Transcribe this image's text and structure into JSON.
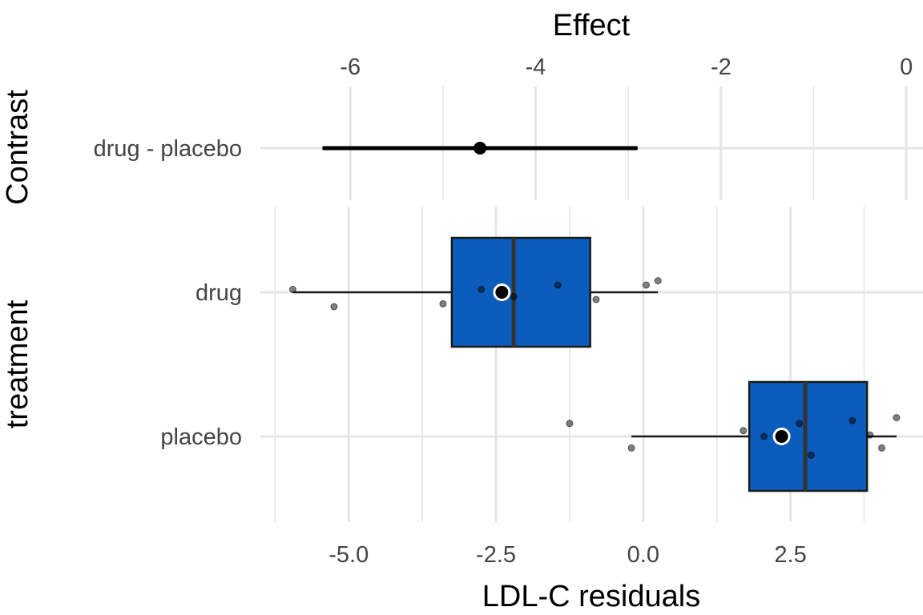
{
  "chart_data": [
    {
      "type": "errorbar",
      "xlabel": "Effect",
      "ylabel": "Contrast",
      "x_axis_position": "top",
      "xlim": [
        -6.97,
        0.18
      ],
      "x_ticks": [
        -6,
        -4,
        -2,
        0
      ],
      "grid": true,
      "contrasts": [
        {
          "label": "drug - placebo",
          "estimate": -4.6,
          "lower": -6.3,
          "upper": -2.9
        }
      ]
    },
    {
      "type": "boxplot",
      "xlabel": "LDL-C residuals",
      "ylabel": "treatment",
      "xlim": [
        -6.5,
        4.75
      ],
      "x_ticks": [
        -5.0,
        -2.5,
        0.0,
        2.5
      ],
      "x_tick_labels": [
        "-5.0",
        "-2.5",
        "0.0",
        "2.5"
      ],
      "grid": true,
      "box_color": "#0b5cbb",
      "groups": [
        {
          "name": "drug",
          "q1": -3.25,
          "median": -2.2,
          "q3": -0.9,
          "whisker_low": -5.95,
          "whisker_high": 0.25,
          "mean": -2.4,
          "points": [
            {
              "x": -5.95,
              "y": 0.02
            },
            {
              "x": -5.25,
              "y": -0.1
            },
            {
              "x": -3.4,
              "y": -0.08
            },
            {
              "x": -2.75,
              "y": 0.02
            },
            {
              "x": -2.2,
              "y": -0.03
            },
            {
              "x": -1.45,
              "y": 0.05
            },
            {
              "x": -0.8,
              "y": -0.05
            },
            {
              "x": 0.05,
              "y": 0.05
            },
            {
              "x": 0.25,
              "y": 0.08
            }
          ]
        },
        {
          "name": "placebo",
          "q1": 1.8,
          "median": 2.75,
          "q3": 3.8,
          "whisker_low": -0.2,
          "whisker_high": 4.3,
          "mean": 2.35,
          "points": [
            {
              "x": -1.25,
              "y": 0.09
            },
            {
              "x": -0.2,
              "y": -0.08
            },
            {
              "x": 1.7,
              "y": 0.04
            },
            {
              "x": 2.05,
              "y": 0.0
            },
            {
              "x": 2.65,
              "y": 0.09
            },
            {
              "x": 2.85,
              "y": -0.13
            },
            {
              "x": 3.55,
              "y": 0.11
            },
            {
              "x": 3.85,
              "y": 0.01
            },
            {
              "x": 4.05,
              "y": -0.08
            },
            {
              "x": 4.3,
              "y": 0.13
            }
          ]
        }
      ]
    }
  ],
  "colors": {
    "box_fill": "#0b5cbb",
    "box_outline": "#1a1a1a",
    "median_line": "#333333",
    "grid": "#e5e5e5",
    "tick_text": "#444444"
  }
}
